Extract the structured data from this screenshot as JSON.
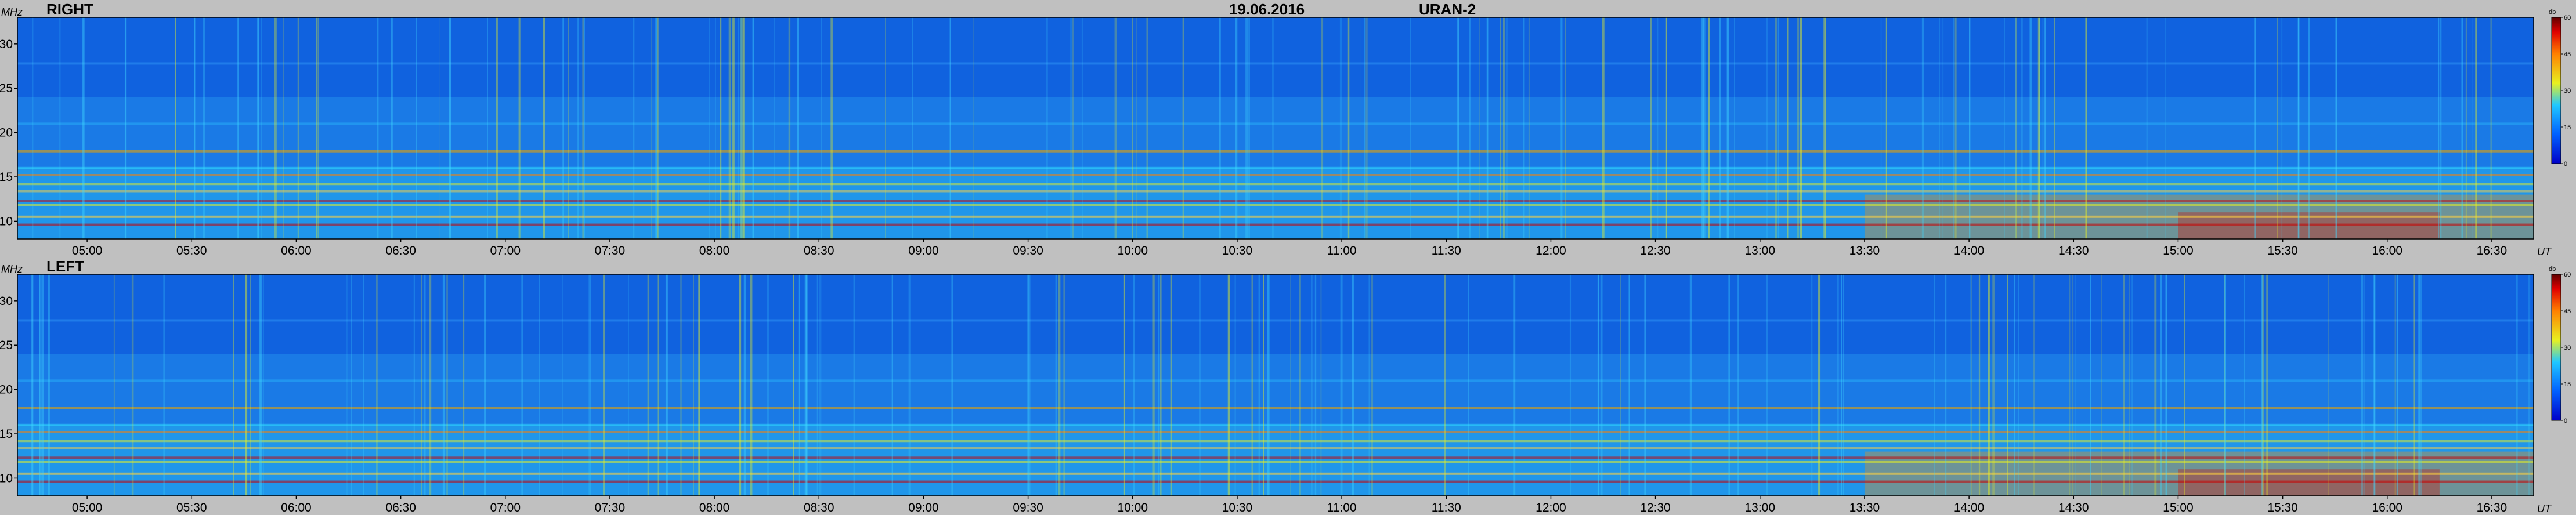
{
  "header": {
    "date": "19.06.2016",
    "station": "URAN-2"
  },
  "chart_data": [
    {
      "type": "heatmap",
      "panel_label": "RIGHT",
      "ylabel": "MHz",
      "xlabel": "UT",
      "colorbar_label": "db",
      "x_ticks": [
        "05:00",
        "05:30",
        "06:00",
        "06:30",
        "07:00",
        "07:30",
        "08:00",
        "08:30",
        "09:00",
        "09:30",
        "10:00",
        "10:30",
        "11:00",
        "11:30",
        "12:00",
        "12:30",
        "13:00",
        "13:30",
        "14:00",
        "14:30",
        "15:00",
        "15:30",
        "16:00",
        "16:30"
      ],
      "y_ticks": [
        "30",
        "25",
        "20",
        "15",
        "10"
      ],
      "colorbar_ticks": [
        "60",
        "45",
        "30",
        "15",
        "0"
      ],
      "xlim": [
        "04:40",
        "16:42"
      ],
      "ylim": [
        8,
        33
      ],
      "clim": [
        0,
        60
      ]
    },
    {
      "type": "heatmap",
      "panel_label": "LEFT",
      "ylabel": "MHz",
      "xlabel": "UT",
      "colorbar_label": "db",
      "x_ticks": [
        "05:00",
        "05:30",
        "06:00",
        "06:30",
        "07:00",
        "07:30",
        "08:00",
        "08:30",
        "09:00",
        "09:30",
        "10:00",
        "10:30",
        "11:00",
        "11:30",
        "12:00",
        "12:30",
        "13:00",
        "13:30",
        "14:00",
        "14:30",
        "15:00",
        "15:30",
        "16:00",
        "16:30"
      ],
      "y_ticks": [
        "30",
        "25",
        "20",
        "15",
        "10"
      ],
      "colorbar_ticks": [
        "60",
        "45",
        "30",
        "15",
        "0"
      ],
      "xlim": [
        "04:40",
        "16:42"
      ],
      "ylim": [
        8,
        33
      ],
      "clim": [
        0,
        60
      ]
    }
  ]
}
